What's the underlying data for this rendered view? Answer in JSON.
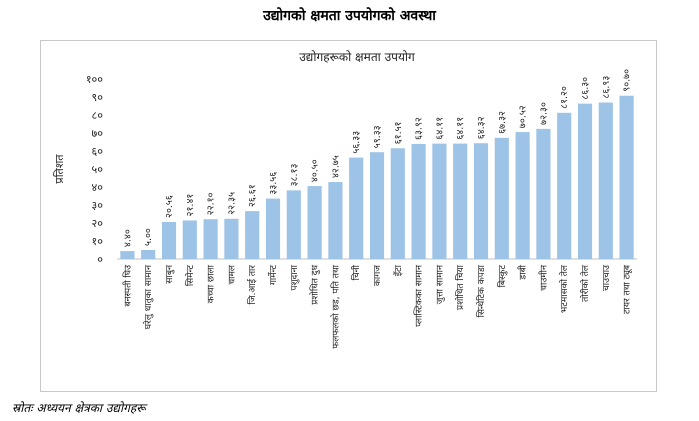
{
  "page_heading": "उद्योगको क्षमता उपयोगको अवस्था",
  "source_note": "स्रोतः अध्ययन क्षेत्रका उद्योगहरू",
  "colors": {
    "bar": "#9dc3e6",
    "axis": "#bfbfbf",
    "border": "#c8c8c8"
  },
  "chart_data": {
    "type": "bar",
    "title": "उद्योगहरूको क्षमता उपयोग",
    "xlabel": "",
    "ylabel": "प्रतिशत",
    "ylim": [
      0,
      100
    ],
    "yticks": [
      "०",
      "१०",
      "२०",
      "३०",
      "४०",
      "५०",
      "६०",
      "७०",
      "८०",
      "९०",
      "१००"
    ],
    "grid": false,
    "legend": "none",
    "categories": [
      "बनस्पती घिउ",
      "घरेलु धातुका सामान",
      "साबुन",
      "सिमेन्ट",
      "कच्चा छाला",
      "चामल",
      "जि.आई तार",
      "गार्मेन्ट",
      "पशुदाना",
      "प्रशोधित दुध",
      "फलफलको छड, पति तथा",
      "चिनी",
      "कागज",
      "इँटा",
      "प्लास्टिकका सामान",
      "जुत्ता सामान",
      "प्रशोधित चिया",
      "सिन्थेटिक कपडा",
      "बिस्कुट",
      "डाबी",
      "चाउमीन",
      "भटमासको तेल",
      "तोरीको तेल",
      "चाउचाउ",
      "टायर तथा ट्यूब"
    ],
    "values": [
      4.4,
      5.0,
      20.56,
      21.41,
      22.1,
      22.35,
      26.61,
      33.56,
      38.13,
      40.5,
      42.75,
      56.33,
      59.33,
      61.51,
      63.92,
      64.11,
      64.11,
      64.32,
      67.32,
      70.52,
      72.3,
      81.2,
      86.3,
      86.93,
      90.7
    ],
    "data_labels": [
      "४.४०",
      "५.००",
      "२०.५६",
      "२१.४१",
      "२२.१०",
      "२२.३५",
      "२६.६१",
      "३३.५६",
      "३८.१३",
      "४०.५०",
      "४२.७५",
      "५६.३३",
      "५९.३३",
      "६१.५१",
      "६३.९२",
      "६४.११",
      "६४.११",
      "६४.३२",
      "६७.३२",
      "७०.५२",
      "७२.३०",
      "८१.२०",
      "८६.३०",
      "८६.९३",
      "९०.७०"
    ]
  }
}
